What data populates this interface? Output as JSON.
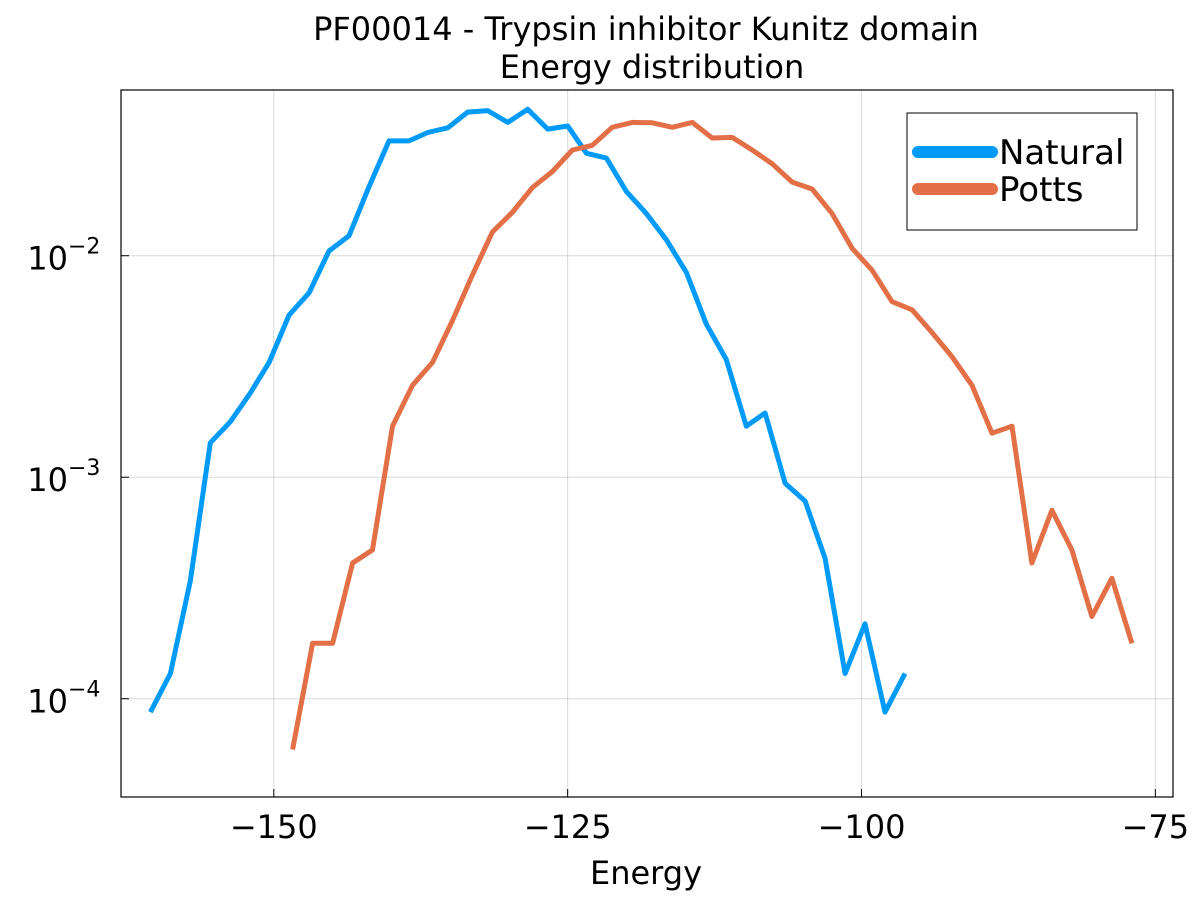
{
  "chart_data": {
    "type": "line",
    "title": "PF00014 - Trypsin inhibitor Kunitz domain",
    "subtitle": "Energy distribution",
    "xlabel": "Energy",
    "ylabel": "",
    "xlim": [
      -163,
      -73.5
    ],
    "ylim": [
      3.6e-05,
      0.056
    ],
    "yscale": "log",
    "grid": true,
    "legend_position": "top-right",
    "x_ticks": [
      {
        "value": -150,
        "label": "−150"
      },
      {
        "value": -125,
        "label": "−125"
      },
      {
        "value": -100,
        "label": "−100"
      },
      {
        "value": -75,
        "label": "−75"
      }
    ],
    "y_ticks": [
      {
        "value": 0.01,
        "base": "10",
        "exp": "−2"
      },
      {
        "value": 0.001,
        "base": "10",
        "exp": "−3"
      },
      {
        "value": 0.0001,
        "base": "10",
        "exp": "−4"
      }
    ],
    "series": [
      {
        "name": "Natural",
        "color": "#009af9",
        "points": [
          [
            -160.5,
            8.7e-05
          ],
          [
            -158.8,
            0.00013
          ],
          [
            -157.1,
            0.00034
          ],
          [
            -155.4,
            0.00143
          ],
          [
            -153.7,
            0.00178
          ],
          [
            -152.0,
            0.0024
          ],
          [
            -150.4,
            0.0033
          ],
          [
            -148.7,
            0.0054
          ],
          [
            -147.0,
            0.0068
          ],
          [
            -145.3,
            0.0105
          ],
          [
            -143.6,
            0.0123
          ],
          [
            -141.9,
            0.0205
          ],
          [
            -140.2,
            0.033
          ],
          [
            -138.5,
            0.033
          ],
          [
            -136.9,
            0.036
          ],
          [
            -135.2,
            0.0378
          ],
          [
            -133.5,
            0.0445
          ],
          [
            -131.8,
            0.0452
          ],
          [
            -130.1,
            0.04
          ],
          [
            -128.4,
            0.0458
          ],
          [
            -126.7,
            0.0373
          ],
          [
            -125.0,
            0.0385
          ],
          [
            -123.4,
            0.029
          ],
          [
            -121.7,
            0.0276
          ],
          [
            -120.0,
            0.0195
          ],
          [
            -118.3,
            0.0155
          ],
          [
            -116.6,
            0.0118
          ],
          [
            -114.9,
            0.0084
          ],
          [
            -113.2,
            0.0049
          ],
          [
            -111.5,
            0.0034
          ],
          [
            -109.8,
            0.0017
          ],
          [
            -108.2,
            0.00195
          ],
          [
            -106.5,
            0.00094
          ],
          [
            -104.8,
            0.00078
          ],
          [
            -103.1,
            0.00043
          ],
          [
            -101.4,
            0.00013
          ],
          [
            -99.7,
            0.000218
          ],
          [
            -98.0,
            8.7e-05
          ],
          [
            -96.3,
            0.00013
          ]
        ]
      },
      {
        "name": "Potts",
        "color": "#e26f46",
        "points": [
          [
            -148.4,
            5.9e-05
          ],
          [
            -146.7,
            0.000178
          ],
          [
            -145.0,
            0.000178
          ],
          [
            -143.3,
            0.00041
          ],
          [
            -141.6,
            0.00047
          ],
          [
            -139.9,
            0.0017
          ],
          [
            -138.2,
            0.0026
          ],
          [
            -136.5,
            0.0033
          ],
          [
            -134.8,
            0.0051
          ],
          [
            -133.1,
            0.0082
          ],
          [
            -131.4,
            0.0128
          ],
          [
            -129.7,
            0.0157
          ],
          [
            -128.0,
            0.0203
          ],
          [
            -126.3,
            0.024
          ],
          [
            -124.6,
            0.03
          ],
          [
            -122.9,
            0.0315
          ],
          [
            -121.2,
            0.038
          ],
          [
            -119.5,
            0.04
          ],
          [
            -117.8,
            0.0398
          ],
          [
            -116.1,
            0.038
          ],
          [
            -114.4,
            0.04
          ],
          [
            -112.7,
            0.034
          ],
          [
            -111.0,
            0.0342
          ],
          [
            -109.3,
            0.03
          ],
          [
            -107.6,
            0.026
          ],
          [
            -105.9,
            0.0215
          ],
          [
            -104.2,
            0.02
          ],
          [
            -102.5,
            0.0155
          ],
          [
            -100.8,
            0.0108
          ],
          [
            -99.1,
            0.0086
          ],
          [
            -97.4,
            0.0062
          ],
          [
            -95.7,
            0.0057
          ],
          [
            -94.0,
            0.0045
          ],
          [
            -92.3,
            0.0035
          ],
          [
            -90.6,
            0.0026
          ],
          [
            -88.9,
            0.00158
          ],
          [
            -87.2,
            0.0017
          ],
          [
            -85.5,
            0.00041
          ],
          [
            -83.8,
            0.00071
          ],
          [
            -82.1,
            0.00047
          ],
          [
            -80.4,
            0.000235
          ],
          [
            -78.7,
            0.00035
          ],
          [
            -77.0,
            0.000178
          ]
        ]
      }
    ]
  }
}
